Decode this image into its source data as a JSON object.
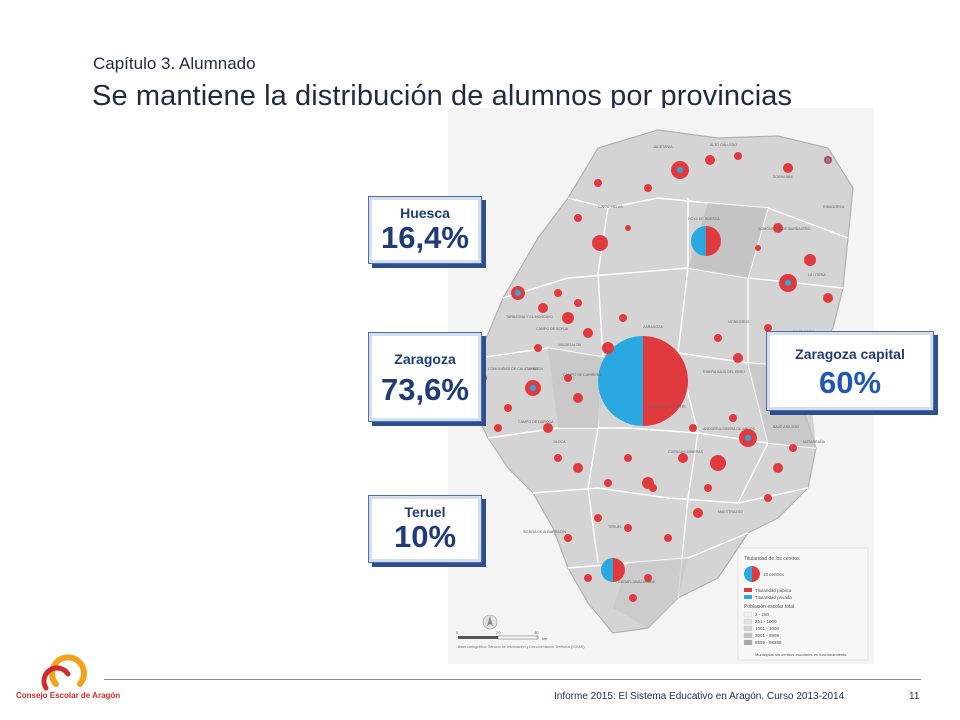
{
  "header": {
    "chapter": "Capítulo 3. Alumnado",
    "title": "Se mantiene la distribución de alumnos por provincias"
  },
  "cards": {
    "huesca": {
      "label": "Huesca",
      "value": "16,4%"
    },
    "zaragoza": {
      "label": "Zaragoza",
      "value": "73,6%"
    },
    "teruel": {
      "label": "Teruel",
      "value": "10%"
    },
    "capital": {
      "label": "Zaragoza capital",
      "value": "60%"
    }
  },
  "map": {
    "comarcas": [
      "JACETANIA",
      "ALTO GÁLLEGO",
      "SOBRARBE",
      "RIBAGORZA",
      "CINCO VILLAS",
      "HOYA DE HUESCA",
      "SOMONTANO DE BARBASTRO",
      "LA LITERA",
      "TARAZONA Y EL MONCAYO",
      "CAMPO DE BORJA",
      "ARANDA",
      "VALDEJALÓN",
      "ZARAGOZA",
      "MONEGROS",
      "BAJO CINCA",
      "COMUNIDAD DE CALATAYUD",
      "CAMPO DE CARIÑENA",
      "RIBERA BAJA DEL EBRO",
      "CAMPO DE DAROCA",
      "CAMPO DE BELCHITE",
      "BAJO ARAGÓN-CASPE",
      "JILOCA",
      "CUENCAS MINERAS",
      "ANDORRA-SIERRA DE ARCOS",
      "BAJO ARAGÓN",
      "MATARRAÑA",
      "MAESTRAZGO",
      "SIERRA DE ALBARRACÍN",
      "TERUEL",
      "GÚDAR-JAVALAMBRE"
    ],
    "legend": {
      "title": "Titularidad de los centros",
      "circle_label": "10 centros",
      "public": "Titularidad pública",
      "private": "Titularidad privada",
      "population_title": "Población escolar total",
      "ranges": [
        "2 - 250",
        "251 - 1000",
        "1001 - 3000",
        "3001 - 8999",
        "8999 - 98368"
      ],
      "no_schools": "Municipios sin centros escolares en funcionamiento"
    },
    "scale_labels": [
      "0",
      "20",
      "40"
    ],
    "scale_unit": "km",
    "source": "Base cartográfica: Servicio de Información y Documentación Territorial (IGEAR)",
    "colors": {
      "public": "#e03a3e",
      "private": "#2aa9e0",
      "land": "#d9d9d9"
    }
  },
  "footer": {
    "logo_text": "Consejo Escolar de Aragón",
    "report": "Informe 2015: El Sistema Educativo en Aragón. Curso 2013-2014",
    "page": "11"
  }
}
